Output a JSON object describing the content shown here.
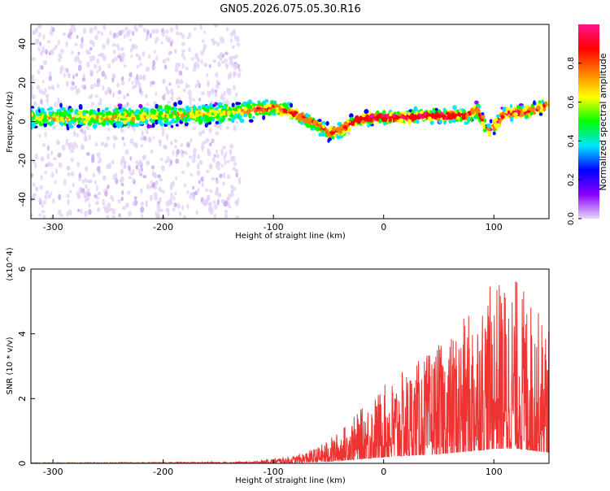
{
  "title": "GN05.2026.075.05.30.R16",
  "chart_data": [
    {
      "type": "heatmap",
      "xlabel": "Height of straight line (km)",
      "ylabel": "Frequency (Hz)",
      "xlim": [
        -320,
        150
      ],
      "ylim": [
        -50,
        50
      ],
      "x_ticks": [
        -300,
        -200,
        -100,
        0,
        100
      ],
      "y_ticks": [
        -40,
        -20,
        0,
        20,
        40
      ],
      "x_tick_labels": [
        "-300",
        "-200",
        "-100",
        "0",
        "100"
      ],
      "y_tick_labels": [
        "-40",
        "-20",
        "0",
        "20",
        "40"
      ],
      "colorbar": {
        "label": "Normalized spectral amplitude",
        "range": [
          0,
          1
        ],
        "ticks": [
          0.0,
          0.2,
          0.4,
          0.6,
          0.8
        ],
        "tick_labels": [
          "0.0",
          "0.2",
          "0.4",
          "0.6",
          "0.8"
        ],
        "colors": [
          "#e8d8f5",
          "#8800ff",
          "#0000ff",
          "#00e5ff",
          "#00ff00",
          "#ffff00",
          "#ff7f00",
          "#ff0000",
          "#ff1493"
        ]
      },
      "ridge_points": [
        {
          "x": -320,
          "y": 2
        },
        {
          "x": -250,
          "y": 2
        },
        {
          "x": -200,
          "y": 3
        },
        {
          "x": -150,
          "y": 4
        },
        {
          "x": -120,
          "y": 6
        },
        {
          "x": -100,
          "y": 7
        },
        {
          "x": -80,
          "y": 4
        },
        {
          "x": -60,
          "y": -2
        },
        {
          "x": -48,
          "y": -6
        },
        {
          "x": -38,
          "y": -4
        },
        {
          "x": -25,
          "y": 1
        },
        {
          "x": -10,
          "y": 2
        },
        {
          "x": 0,
          "y": 2
        },
        {
          "x": 20,
          "y": 2
        },
        {
          "x": 40,
          "y": 3
        },
        {
          "x": 60,
          "y": 3
        },
        {
          "x": 75,
          "y": 3
        },
        {
          "x": 85,
          "y": 6
        },
        {
          "x": 95,
          "y": -5
        },
        {
          "x": 110,
          "y": 4
        },
        {
          "x": 130,
          "y": 5
        },
        {
          "x": 150,
          "y": 9
        }
      ]
    },
    {
      "type": "line",
      "xlabel": "Height of straight line (km)",
      "ylabel": "SNR (10 * v/v)",
      "scale_label": "(x10^4)",
      "xlim": [
        -320,
        150
      ],
      "ylim": [
        0,
        6
      ],
      "x_ticks": [
        -300,
        -200,
        -100,
        0,
        100
      ],
      "y_ticks": [
        0,
        2,
        4,
        6
      ],
      "x_tick_labels": [
        "-300",
        "-200",
        "-100",
        "0",
        "100"
      ],
      "y_tick_labels": [
        "0",
        "2",
        "4",
        "6"
      ],
      "color": "#ee3333",
      "envelope": [
        {
          "x": -320,
          "y": 0.02
        },
        {
          "x": -200,
          "y": 0.03
        },
        {
          "x": -120,
          "y": 0.05
        },
        {
          "x": -100,
          "y": 0.15
        },
        {
          "x": -80,
          "y": 0.25
        },
        {
          "x": -60,
          "y": 0.5
        },
        {
          "x": -40,
          "y": 1.0
        },
        {
          "x": -20,
          "y": 1.7
        },
        {
          "x": 0,
          "y": 2.4
        },
        {
          "x": 20,
          "y": 2.9
        },
        {
          "x": 40,
          "y": 3.4
        },
        {
          "x": 60,
          "y": 3.9
        },
        {
          "x": 80,
          "y": 4.8
        },
        {
          "x": 100,
          "y": 5.6
        },
        {
          "x": 120,
          "y": 5.8
        },
        {
          "x": 150,
          "y": 4.2
        }
      ]
    }
  ]
}
